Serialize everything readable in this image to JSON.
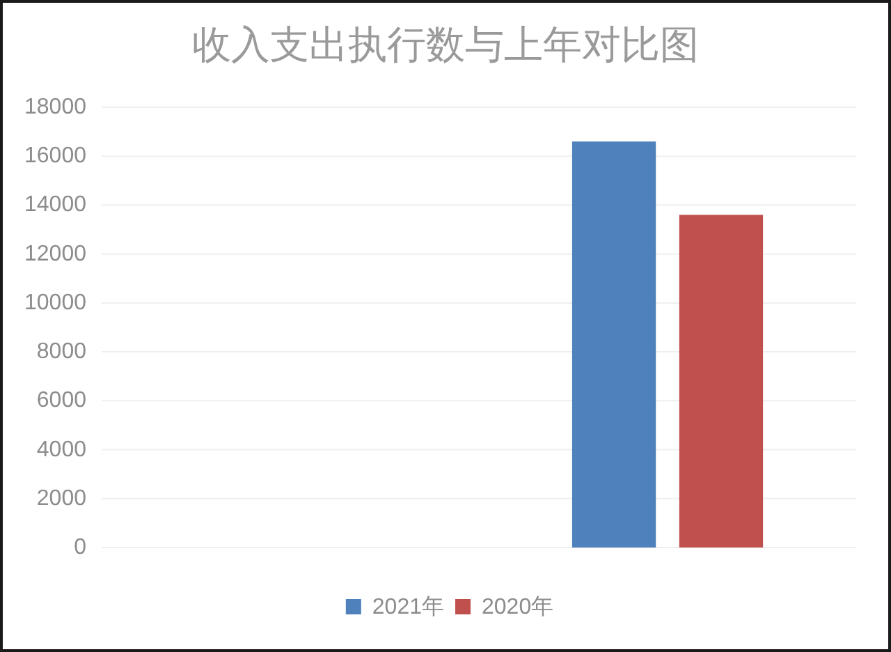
{
  "chart_data": {
    "type": "bar",
    "title": "收入支出执行数与上年对比图",
    "categories": [
      null,
      null
    ],
    "series": [
      {
        "name": "2021年",
        "color": "#4f81bd",
        "values": [
          null,
          16600
        ]
      },
      {
        "name": "2020年",
        "color": "#c0504d",
        "values": [
          null,
          13600
        ]
      }
    ],
    "ylim": [
      0,
      18000
    ],
    "yticks": [
      0,
      2000,
      4000,
      6000,
      8000,
      10000,
      12000,
      14000,
      16000,
      18000
    ],
    "grid": "y",
    "legend": "bottom"
  }
}
